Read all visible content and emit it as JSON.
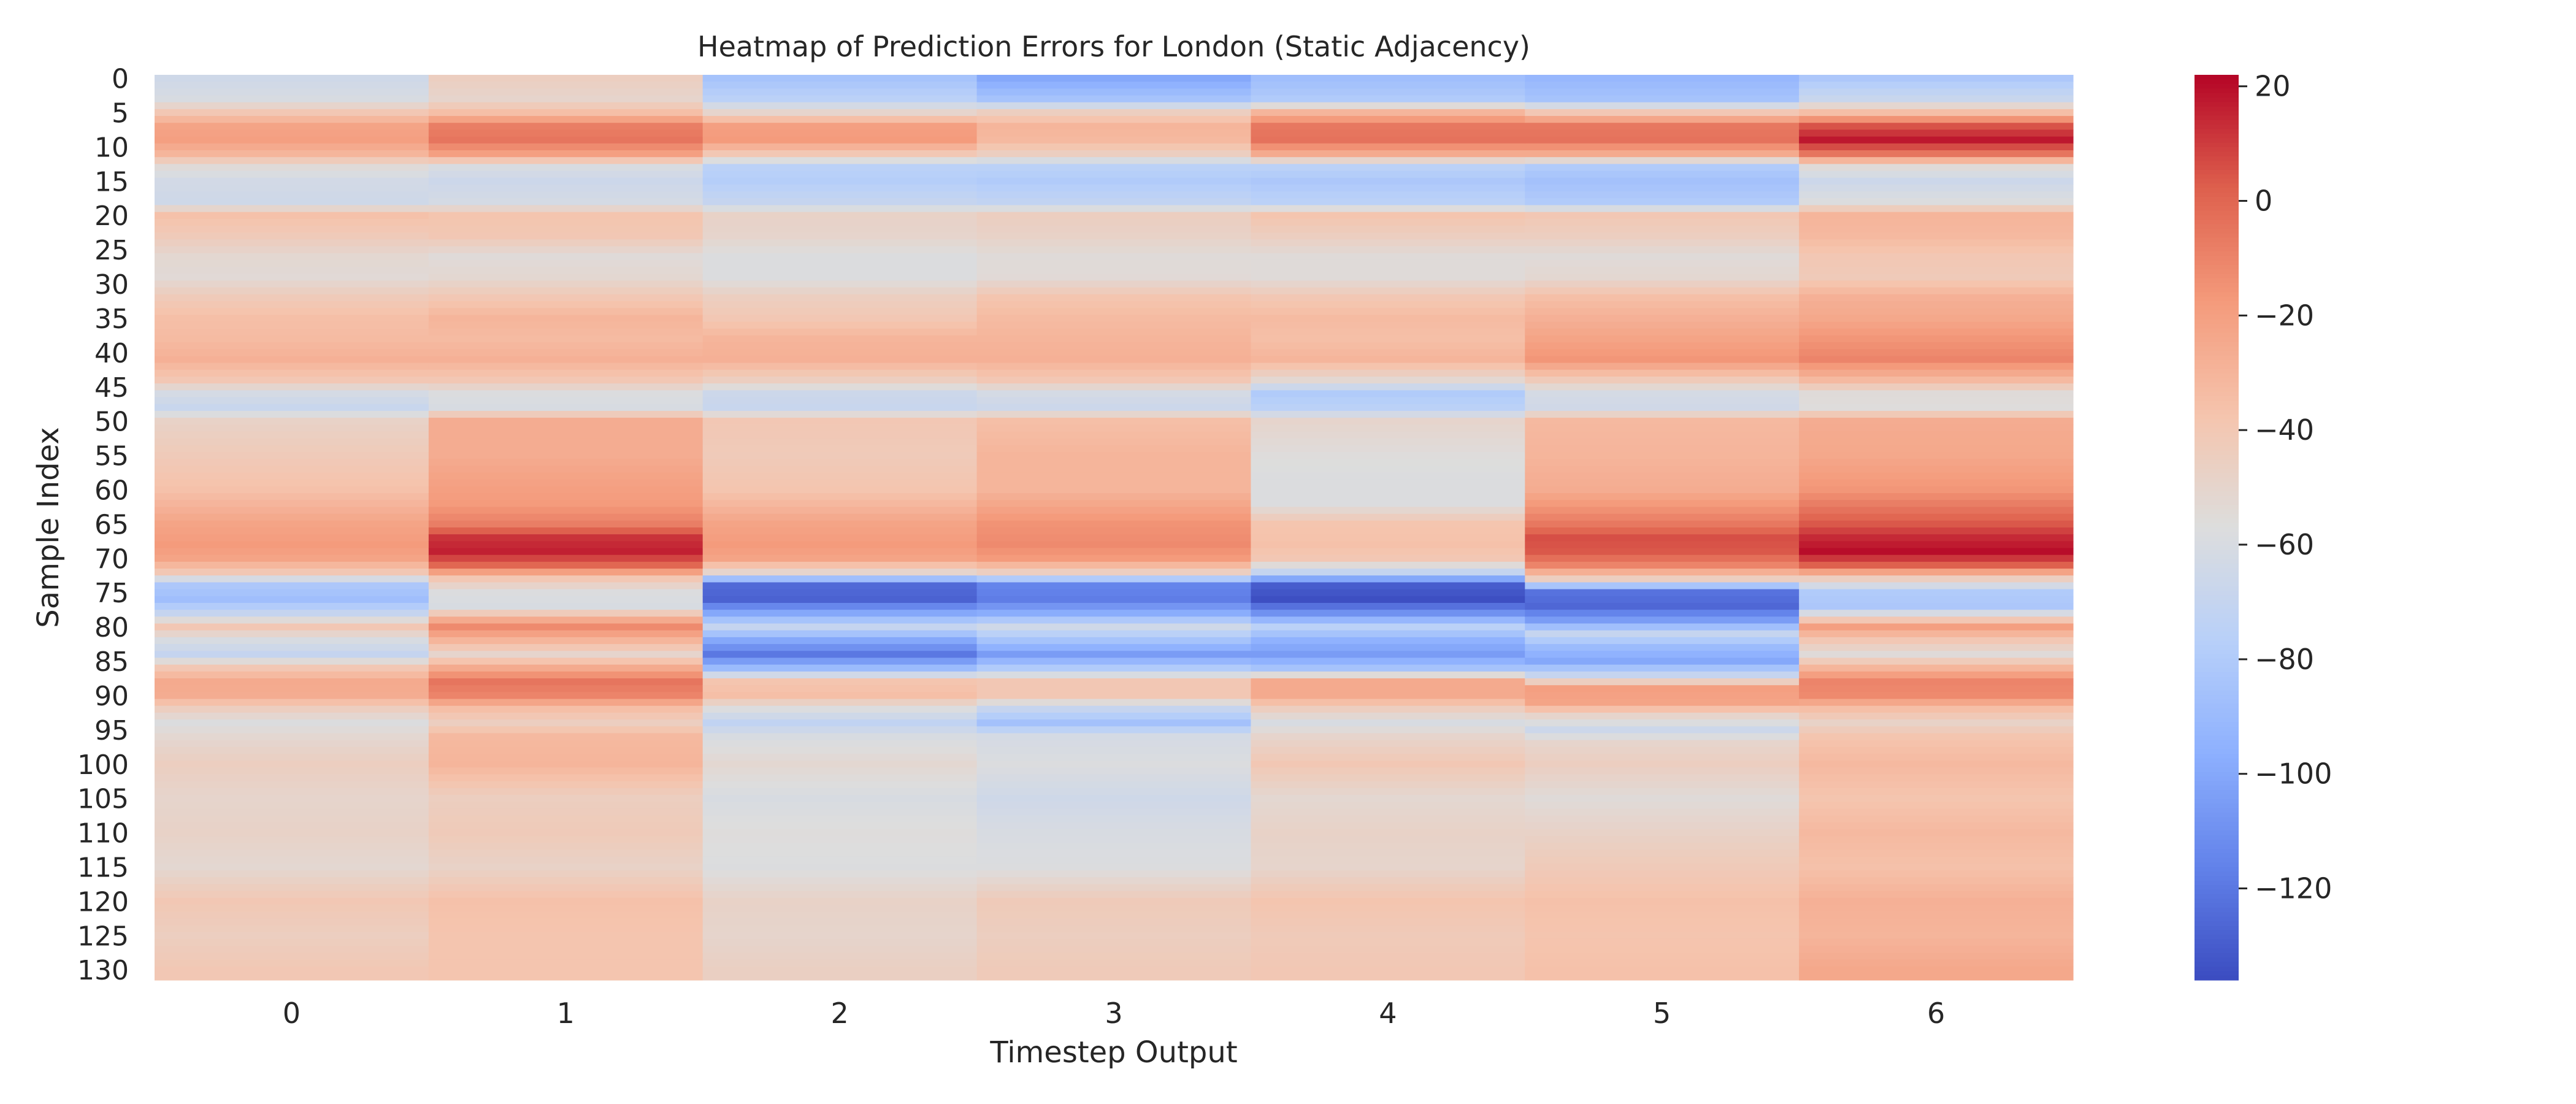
{
  "chart_data": {
    "type": "heatmap",
    "title": "Heatmap of Prediction Errors for London (Static Adjacency)",
    "xlabel": "Timestep Output",
    "ylabel": "Sample Index",
    "x_categories": [
      "0",
      "1",
      "2",
      "3",
      "4",
      "5",
      "6"
    ],
    "y_tick_labels": [
      "0",
      "5",
      "10",
      "15",
      "20",
      "25",
      "30",
      "35",
      "40",
      "45",
      "50",
      "55",
      "60",
      "65",
      "70",
      "75",
      "80",
      "85",
      "90",
      "95",
      "100",
      "105",
      "110",
      "115",
      "120",
      "125",
      "130"
    ],
    "n_rows": 132,
    "colormap": "coolwarm",
    "colorbar": {
      "min": -136,
      "max": 22,
      "ticks": [
        20,
        0,
        -20,
        -40,
        -60,
        -80,
        -100,
        -120
      ],
      "tick_labels": [
        "20",
        "0",
        "−20",
        "−40",
        "−60",
        "−80",
        "−100",
        "−120"
      ]
    },
    "column_profiles": [
      [
        [
          0,
          -65
        ],
        [
          3,
          -60
        ],
        [
          5,
          -40
        ],
        [
          7,
          -22
        ],
        [
          9,
          -20
        ],
        [
          11,
          -30
        ],
        [
          13,
          -55
        ],
        [
          15,
          -63
        ],
        [
          18,
          -65
        ],
        [
          20,
          -36
        ],
        [
          23,
          -42
        ],
        [
          26,
          -52
        ],
        [
          29,
          -54
        ],
        [
          32,
          -42
        ],
        [
          35,
          -35
        ],
        [
          38,
          -33
        ],
        [
          41,
          -28
        ],
        [
          44,
          -40
        ],
        [
          46,
          -62
        ],
        [
          48,
          -68
        ],
        [
          50,
          -48
        ],
        [
          55,
          -42
        ],
        [
          60,
          -36
        ],
        [
          65,
          -22
        ],
        [
          68,
          -18
        ],
        [
          70,
          -22
        ],
        [
          72,
          -40
        ],
        [
          74,
          -82
        ],
        [
          76,
          -88
        ],
        [
          78,
          -70
        ],
        [
          80,
          -40
        ],
        [
          82,
          -60
        ],
        [
          84,
          -70
        ],
        [
          86,
          -40
        ],
        [
          88,
          -25
        ],
        [
          90,
          -26
        ],
        [
          92,
          -45
        ],
        [
          94,
          -58
        ],
        [
          96,
          -52
        ],
        [
          100,
          -45
        ],
        [
          105,
          -50
        ],
        [
          110,
          -48
        ],
        [
          115,
          -52
        ],
        [
          120,
          -40
        ],
        [
          125,
          -45
        ],
        [
          130,
          -40
        ],
        [
          131,
          -40
        ]
      ],
      [
        [
          0,
          -45
        ],
        [
          3,
          -50
        ],
        [
          5,
          -35
        ],
        [
          7,
          -8
        ],
        [
          9,
          -5
        ],
        [
          11,
          -20
        ],
        [
          13,
          -60
        ],
        [
          15,
          -66
        ],
        [
          18,
          -62
        ],
        [
          20,
          -38
        ],
        [
          23,
          -40
        ],
        [
          26,
          -55
        ],
        [
          29,
          -52
        ],
        [
          32,
          -40
        ],
        [
          35,
          -30
        ],
        [
          38,
          -33
        ],
        [
          41,
          -28
        ],
        [
          44,
          -40
        ],
        [
          46,
          -58
        ],
        [
          48,
          -60
        ],
        [
          50,
          -26
        ],
        [
          55,
          -26
        ],
        [
          58,
          -22
        ],
        [
          62,
          -18
        ],
        [
          65,
          -8
        ],
        [
          67,
          12
        ],
        [
          69,
          16
        ],
        [
          71,
          0
        ],
        [
          73,
          -40
        ],
        [
          75,
          -58
        ],
        [
          77,
          -60
        ],
        [
          79,
          -25
        ],
        [
          80,
          -12
        ],
        [
          82,
          -30
        ],
        [
          84,
          -50
        ],
        [
          86,
          -25
        ],
        [
          88,
          -5
        ],
        [
          90,
          -10
        ],
        [
          92,
          -35
        ],
        [
          94,
          -45
        ],
        [
          96,
          -32
        ],
        [
          100,
          -30
        ],
        [
          105,
          -45
        ],
        [
          110,
          -42
        ],
        [
          115,
          -48
        ],
        [
          120,
          -36
        ],
        [
          125,
          -38
        ],
        [
          130,
          -38
        ],
        [
          131,
          -38
        ]
      ],
      [
        [
          0,
          -85
        ],
        [
          3,
          -75
        ],
        [
          5,
          -50
        ],
        [
          7,
          -20
        ],
        [
          9,
          -18
        ],
        [
          11,
          -40
        ],
        [
          13,
          -75
        ],
        [
          15,
          -78
        ],
        [
          18,
          -70
        ],
        [
          20,
          -48
        ],
        [
          23,
          -50
        ],
        [
          26,
          -58
        ],
        [
          29,
          -58
        ],
        [
          32,
          -45
        ],
        [
          35,
          -40
        ],
        [
          38,
          -30
        ],
        [
          41,
          -28
        ],
        [
          44,
          -45
        ],
        [
          46,
          -66
        ],
        [
          48,
          -68
        ],
        [
          50,
          -40
        ],
        [
          55,
          -42
        ],
        [
          60,
          -38
        ],
        [
          65,
          -22
        ],
        [
          68,
          -18
        ],
        [
          70,
          -22
        ],
        [
          72,
          -50
        ],
        [
          74,
          -125
        ],
        [
          76,
          -128
        ],
        [
          78,
          -100
        ],
        [
          80,
          -70
        ],
        [
          82,
          -100
        ],
        [
          84,
          -120
        ],
        [
          86,
          -90
        ],
        [
          88,
          -38
        ],
        [
          90,
          -35
        ],
        [
          92,
          -58
        ],
        [
          94,
          -72
        ],
        [
          96,
          -60
        ],
        [
          100,
          -52
        ],
        [
          105,
          -60
        ],
        [
          110,
          -56
        ],
        [
          115,
          -58
        ],
        [
          120,
          -48
        ],
        [
          125,
          -50
        ],
        [
          130,
          -46
        ],
        [
          131,
          -46
        ]
      ],
      [
        [
          0,
          -100
        ],
        [
          3,
          -85
        ],
        [
          5,
          -45
        ],
        [
          7,
          -30
        ],
        [
          9,
          -32
        ],
        [
          11,
          -45
        ],
        [
          13,
          -75
        ],
        [
          15,
          -80
        ],
        [
          18,
          -72
        ],
        [
          20,
          -45
        ],
        [
          23,
          -48
        ],
        [
          26,
          -55
        ],
        [
          29,
          -54
        ],
        [
          32,
          -38
        ],
        [
          35,
          -33
        ],
        [
          38,
          -30
        ],
        [
          41,
          -28
        ],
        [
          44,
          -40
        ],
        [
          46,
          -62
        ],
        [
          48,
          -66
        ],
        [
          50,
          -35
        ],
        [
          55,
          -30
        ],
        [
          60,
          -30
        ],
        [
          65,
          -15
        ],
        [
          68,
          -12
        ],
        [
          70,
          -18
        ],
        [
          72,
          -45
        ],
        [
          74,
          -115
        ],
        [
          76,
          -118
        ],
        [
          78,
          -98
        ],
        [
          80,
          -65
        ],
        [
          82,
          -85
        ],
        [
          84,
          -105
        ],
        [
          86,
          -80
        ],
        [
          88,
          -40
        ],
        [
          90,
          -40
        ],
        [
          92,
          -70
        ],
        [
          94,
          -86
        ],
        [
          96,
          -62
        ],
        [
          100,
          -58
        ],
        [
          105,
          -65
        ],
        [
          110,
          -60
        ],
        [
          115,
          -58
        ],
        [
          120,
          -42
        ],
        [
          125,
          -45
        ],
        [
          130,
          -42
        ],
        [
          131,
          -42
        ]
      ],
      [
        [
          0,
          -88
        ],
        [
          3,
          -80
        ],
        [
          5,
          -30
        ],
        [
          7,
          -6
        ],
        [
          9,
          -4
        ],
        [
          11,
          -25
        ],
        [
          13,
          -75
        ],
        [
          15,
          -82
        ],
        [
          18,
          -75
        ],
        [
          20,
          -38
        ],
        [
          23,
          -45
        ],
        [
          26,
          -55
        ],
        [
          29,
          -55
        ],
        [
          32,
          -40
        ],
        [
          35,
          -33
        ],
        [
          38,
          -35
        ],
        [
          41,
          -30
        ],
        [
          44,
          -52
        ],
        [
          46,
          -80
        ],
        [
          48,
          -75
        ],
        [
          50,
          -50
        ],
        [
          55,
          -56
        ],
        [
          58,
          -58
        ],
        [
          62,
          -58
        ],
        [
          65,
          -38
        ],
        [
          68,
          -36
        ],
        [
          70,
          -40
        ],
        [
          72,
          -70
        ],
        [
          74,
          -130
        ],
        [
          76,
          -135
        ],
        [
          78,
          -110
        ],
        [
          80,
          -75
        ],
        [
          82,
          -95
        ],
        [
          84,
          -105
        ],
        [
          86,
          -85
        ],
        [
          88,
          -25
        ],
        [
          90,
          -25
        ],
        [
          92,
          -45
        ],
        [
          94,
          -60
        ],
        [
          96,
          -50
        ],
        [
          100,
          -40
        ],
        [
          105,
          -52
        ],
        [
          110,
          -48
        ],
        [
          115,
          -50
        ],
        [
          120,
          -38
        ],
        [
          125,
          -42
        ],
        [
          130,
          -40
        ],
        [
          131,
          -40
        ]
      ],
      [
        [
          0,
          -92
        ],
        [
          3,
          -85
        ],
        [
          5,
          -40
        ],
        [
          7,
          -6
        ],
        [
          9,
          -4
        ],
        [
          11,
          -25
        ],
        [
          13,
          -80
        ],
        [
          15,
          -86
        ],
        [
          18,
          -80
        ],
        [
          20,
          -40
        ],
        [
          23,
          -45
        ],
        [
          26,
          -55
        ],
        [
          29,
          -52
        ],
        [
          32,
          -35
        ],
        [
          35,
          -28
        ],
        [
          38,
          -22
        ],
        [
          41,
          -16
        ],
        [
          44,
          -42
        ],
        [
          46,
          -62
        ],
        [
          48,
          -64
        ],
        [
          50,
          -32
        ],
        [
          55,
          -30
        ],
        [
          60,
          -26
        ],
        [
          65,
          -6
        ],
        [
          67,
          6
        ],
        [
          69,
          4
        ],
        [
          71,
          -10
        ],
        [
          73,
          -45
        ],
        [
          75,
          -122
        ],
        [
          77,
          -126
        ],
        [
          79,
          -105
        ],
        [
          81,
          -70
        ],
        [
          83,
          -90
        ],
        [
          85,
          -100
        ],
        [
          87,
          -70
        ],
        [
          89,
          -20
        ],
        [
          91,
          -22
        ],
        [
          93,
          -50
        ],
        [
          95,
          -66
        ],
        [
          97,
          -50
        ],
        [
          100,
          -45
        ],
        [
          105,
          -55
        ],
        [
          110,
          -48
        ],
        [
          115,
          -42
        ],
        [
          120,
          -36
        ],
        [
          125,
          -38
        ],
        [
          130,
          -36
        ],
        [
          131,
          -36
        ]
      ],
      [
        [
          0,
          -82
        ],
        [
          3,
          -68
        ],
        [
          5,
          -35
        ],
        [
          7,
          5
        ],
        [
          9,
          18
        ],
        [
          11,
          -5
        ],
        [
          13,
          -55
        ],
        [
          15,
          -66
        ],
        [
          18,
          -58
        ],
        [
          20,
          -30
        ],
        [
          23,
          -32
        ],
        [
          26,
          -40
        ],
        [
          29,
          -42
        ],
        [
          32,
          -28
        ],
        [
          35,
          -24
        ],
        [
          38,
          -16
        ],
        [
          41,
          -10
        ],
        [
          44,
          -32
        ],
        [
          46,
          -55
        ],
        [
          48,
          -56
        ],
        [
          50,
          -26
        ],
        [
          55,
          -24
        ],
        [
          60,
          -16
        ],
        [
          65,
          4
        ],
        [
          67,
          14
        ],
        [
          69,
          20
        ],
        [
          71,
          2
        ],
        [
          73,
          -45
        ],
        [
          75,
          -80
        ],
        [
          77,
          -82
        ],
        [
          79,
          -40
        ],
        [
          80,
          -20
        ],
        [
          82,
          -40
        ],
        [
          84,
          -55
        ],
        [
          86,
          -30
        ],
        [
          88,
          -10
        ],
        [
          90,
          -12
        ],
        [
          92,
          -35
        ],
        [
          94,
          -48
        ],
        [
          96,
          -38
        ],
        [
          100,
          -32
        ],
        [
          105,
          -38
        ],
        [
          110,
          -32
        ],
        [
          115,
          -36
        ],
        [
          120,
          -28
        ],
        [
          125,
          -30
        ],
        [
          130,
          -24
        ],
        [
          131,
          -24
        ]
      ]
    ]
  }
}
